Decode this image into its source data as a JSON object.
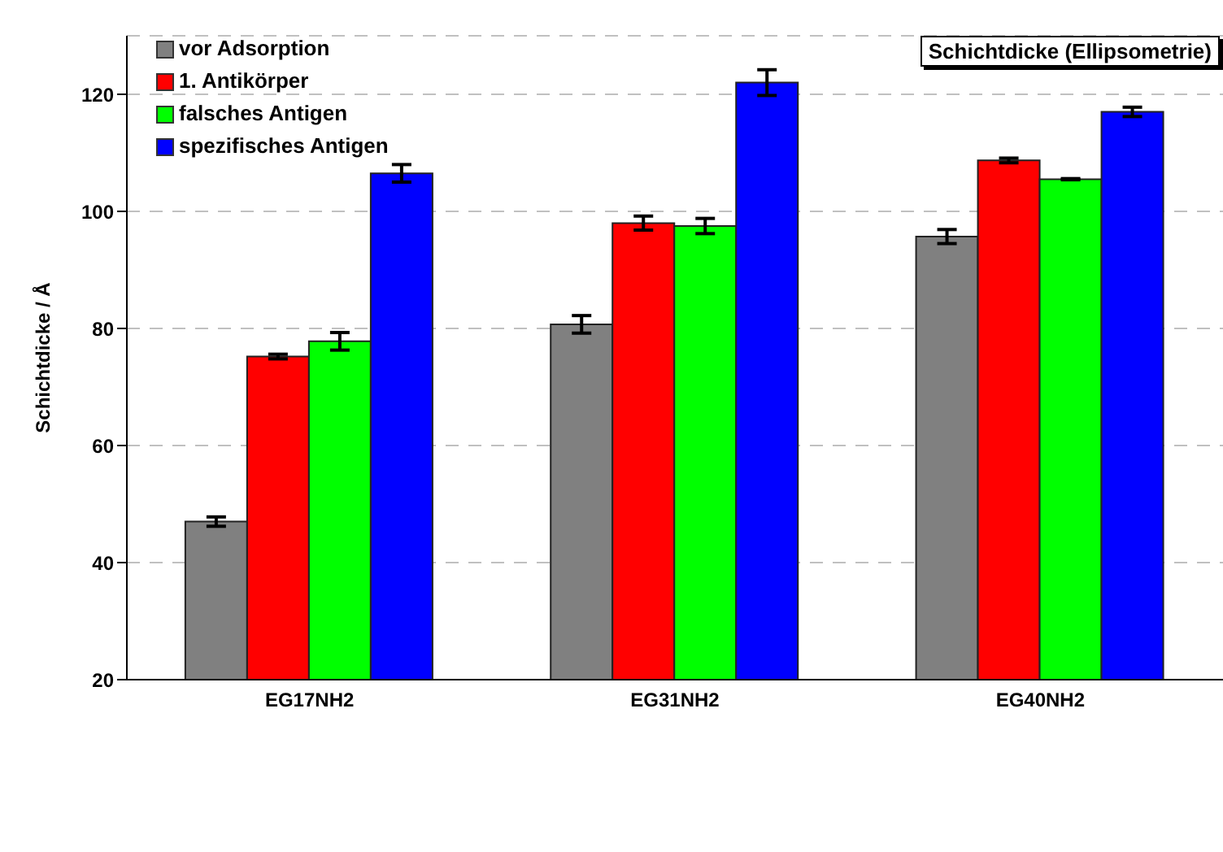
{
  "chart_data": {
    "type": "bar",
    "title": "Schichtdicke (Ellipsometrie)",
    "ylabel": "Schichtdicke / Å",
    "categories": [
      "EG17NH2",
      "EG31NH2",
      "EG40NH2"
    ],
    "series": [
      {
        "name": "vor Adsorption",
        "color": "#808080",
        "values": [
          47.0,
          80.7,
          95.7
        ],
        "errors": [
          0.8,
          1.5,
          1.2
        ]
      },
      {
        "name": "1. Antikörper",
        "color": "#ff0000",
        "values": [
          75.2,
          98.0,
          108.7
        ],
        "errors": [
          0.4,
          1.2,
          0.4
        ]
      },
      {
        "name": "falsches Antigen",
        "color": "#00ff00",
        "values": [
          77.8,
          97.5,
          105.5
        ],
        "errors": [
          1.5,
          1.3,
          0.1
        ]
      },
      {
        "name": "spezifisches Antigen",
        "color": "#0000ff",
        "values": [
          106.5,
          122.0,
          117.0
        ],
        "errors": [
          1.5,
          2.2,
          0.8
        ]
      }
    ],
    "ylim": [
      20,
      130
    ],
    "yticks": [
      20,
      40,
      60,
      80,
      100,
      120
    ],
    "grid": "y",
    "legend": "top left"
  }
}
